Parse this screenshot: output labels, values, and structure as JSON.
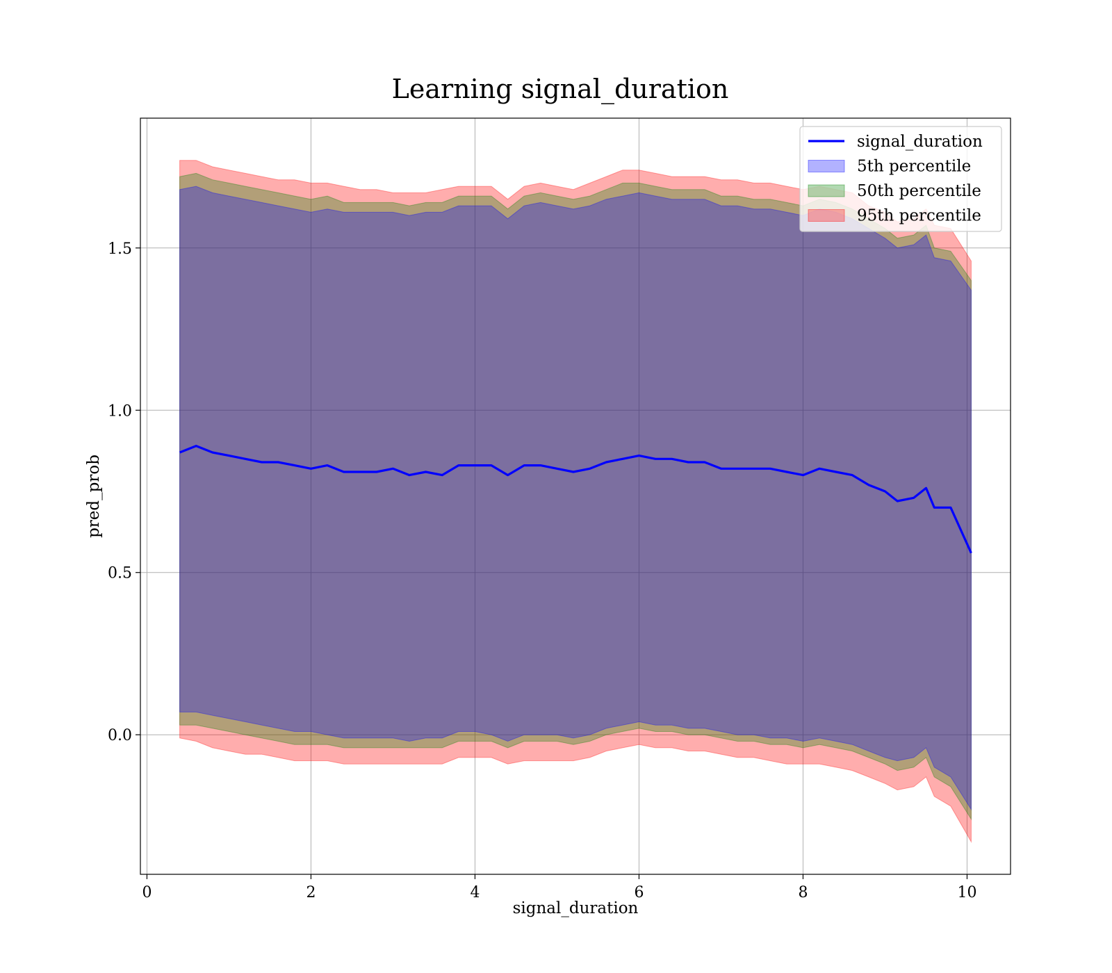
{
  "chart_data": {
    "type": "area",
    "title": "Learning signal_duration",
    "xlabel": "signal_duration",
    "ylabel": "pred_prob",
    "xlim": [
      -0.08,
      10.53
    ],
    "ylim": [
      -0.43,
      1.9
    ],
    "xticks": [
      0,
      2,
      4,
      6,
      8,
      10
    ],
    "xtick_labels": [
      "0",
      "2",
      "4",
      "6",
      "8",
      "10"
    ],
    "yticks": [
      0.0,
      0.5,
      1.0,
      1.5
    ],
    "ytick_labels": [
      "0.0",
      "0.5",
      "1.0",
      "1.5"
    ],
    "grid": true,
    "legend_position": "top-right",
    "x": [
      0.4,
      0.6,
      0.8,
      1.0,
      1.2,
      1.4,
      1.6,
      1.8,
      2.0,
      2.2,
      2.4,
      2.6,
      2.8,
      3.0,
      3.2,
      3.4,
      3.6,
      3.8,
      4.0,
      4.2,
      4.4,
      4.6,
      4.8,
      5.0,
      5.2,
      5.4,
      5.6,
      5.8,
      6.0,
      6.2,
      6.4,
      6.6,
      6.8,
      7.0,
      7.2,
      7.4,
      7.6,
      7.8,
      8.0,
      8.2,
      8.4,
      8.6,
      8.8,
      9.0,
      9.15,
      9.35,
      9.5,
      9.6,
      9.8,
      10.05
    ],
    "line": {
      "name": "signal_duration",
      "color": "#0000ff",
      "values": [
        0.87,
        0.89,
        0.87,
        0.86,
        0.85,
        0.84,
        0.84,
        0.83,
        0.82,
        0.83,
        0.81,
        0.81,
        0.81,
        0.82,
        0.8,
        0.81,
        0.8,
        0.83,
        0.83,
        0.83,
        0.8,
        0.83,
        0.83,
        0.82,
        0.81,
        0.82,
        0.84,
        0.85,
        0.86,
        0.85,
        0.85,
        0.84,
        0.84,
        0.82,
        0.82,
        0.82,
        0.82,
        0.81,
        0.8,
        0.82,
        0.81,
        0.8,
        0.77,
        0.75,
        0.72,
        0.73,
        0.76,
        0.7,
        0.7,
        0.56
      ]
    },
    "bands": [
      {
        "name": "95th percentile",
        "color": "#ff0000",
        "opacity": 0.32,
        "upper": [
          1.77,
          1.77,
          1.75,
          1.74,
          1.73,
          1.72,
          1.71,
          1.71,
          1.7,
          1.7,
          1.69,
          1.68,
          1.68,
          1.67,
          1.67,
          1.67,
          1.68,
          1.69,
          1.69,
          1.69,
          1.65,
          1.69,
          1.7,
          1.69,
          1.68,
          1.7,
          1.72,
          1.74,
          1.74,
          1.73,
          1.72,
          1.72,
          1.72,
          1.71,
          1.71,
          1.7,
          1.7,
          1.69,
          1.68,
          1.69,
          1.68,
          1.67,
          1.63,
          1.61,
          1.58,
          1.59,
          1.62,
          1.57,
          1.56,
          1.46
        ],
        "lower": [
          -0.01,
          -0.02,
          -0.04,
          -0.05,
          -0.06,
          -0.06,
          -0.07,
          -0.08,
          -0.08,
          -0.08,
          -0.09,
          -0.09,
          -0.09,
          -0.09,
          -0.09,
          -0.09,
          -0.09,
          -0.07,
          -0.07,
          -0.07,
          -0.09,
          -0.08,
          -0.08,
          -0.08,
          -0.08,
          -0.07,
          -0.05,
          -0.04,
          -0.03,
          -0.04,
          -0.04,
          -0.05,
          -0.05,
          -0.06,
          -0.07,
          -0.07,
          -0.08,
          -0.09,
          -0.09,
          -0.09,
          -0.1,
          -0.11,
          -0.13,
          -0.15,
          -0.17,
          -0.16,
          -0.13,
          -0.19,
          -0.22,
          -0.33
        ]
      },
      {
        "name": "50th percentile",
        "color": "#008000",
        "opacity": 0.3,
        "upper": [
          1.72,
          1.73,
          1.71,
          1.7,
          1.69,
          1.68,
          1.67,
          1.66,
          1.65,
          1.66,
          1.64,
          1.64,
          1.64,
          1.64,
          1.63,
          1.64,
          1.64,
          1.66,
          1.66,
          1.66,
          1.62,
          1.66,
          1.67,
          1.66,
          1.65,
          1.66,
          1.68,
          1.7,
          1.7,
          1.69,
          1.68,
          1.68,
          1.68,
          1.66,
          1.66,
          1.65,
          1.65,
          1.64,
          1.63,
          1.65,
          1.64,
          1.62,
          1.59,
          1.56,
          1.53,
          1.54,
          1.57,
          1.5,
          1.49,
          1.4
        ],
        "lower": [
          0.03,
          0.03,
          0.02,
          0.01,
          0.0,
          -0.01,
          -0.02,
          -0.03,
          -0.03,
          -0.03,
          -0.04,
          -0.04,
          -0.04,
          -0.04,
          -0.04,
          -0.04,
          -0.04,
          -0.02,
          -0.02,
          -0.02,
          -0.04,
          -0.02,
          -0.02,
          -0.02,
          -0.03,
          -0.02,
          0.0,
          0.01,
          0.02,
          0.01,
          0.01,
          0.0,
          0.0,
          -0.01,
          -0.02,
          -0.02,
          -0.03,
          -0.03,
          -0.04,
          -0.03,
          -0.04,
          -0.05,
          -0.07,
          -0.09,
          -0.11,
          -0.1,
          -0.07,
          -0.13,
          -0.16,
          -0.26
        ]
      },
      {
        "name": "5th percentile",
        "color": "#0000ff",
        "opacity": 0.3,
        "upper": [
          1.68,
          1.69,
          1.67,
          1.66,
          1.65,
          1.64,
          1.63,
          1.62,
          1.61,
          1.62,
          1.61,
          1.61,
          1.61,
          1.61,
          1.6,
          1.61,
          1.61,
          1.63,
          1.63,
          1.63,
          1.59,
          1.63,
          1.64,
          1.63,
          1.62,
          1.63,
          1.65,
          1.66,
          1.67,
          1.66,
          1.65,
          1.65,
          1.65,
          1.63,
          1.63,
          1.62,
          1.62,
          1.61,
          1.6,
          1.62,
          1.61,
          1.59,
          1.56,
          1.53,
          1.5,
          1.51,
          1.54,
          1.47,
          1.46,
          1.37
        ],
        "lower": [
          0.07,
          0.07,
          0.06,
          0.05,
          0.04,
          0.03,
          0.02,
          0.01,
          0.01,
          0.0,
          -0.01,
          -0.01,
          -0.01,
          -0.01,
          -0.02,
          -0.01,
          -0.01,
          0.01,
          0.01,
          0.0,
          -0.02,
          0.0,
          0.0,
          0.0,
          -0.01,
          0.0,
          0.02,
          0.03,
          0.04,
          0.03,
          0.03,
          0.02,
          0.02,
          0.01,
          0.0,
          0.0,
          -0.01,
          -0.01,
          -0.02,
          -0.01,
          -0.02,
          -0.03,
          -0.05,
          -0.07,
          -0.08,
          -0.07,
          -0.04,
          -0.1,
          -0.13,
          -0.23
        ]
      }
    ],
    "legend": [
      {
        "label": "signal_duration",
        "kind": "line",
        "color": "#0000ff"
      },
      {
        "label": "5th percentile",
        "kind": "patch",
        "color": "#0000ff"
      },
      {
        "label": "50th percentile",
        "kind": "patch",
        "color": "#008000"
      },
      {
        "label": "95th percentile",
        "kind": "patch",
        "color": "#ff0000"
      }
    ]
  }
}
